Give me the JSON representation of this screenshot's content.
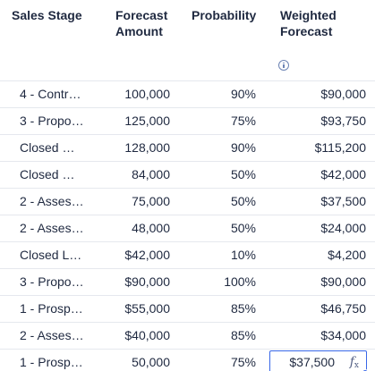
{
  "table": {
    "headers": {
      "stage": "Sales Stage",
      "amount_line1": "Forecast",
      "amount_line2": "Amount",
      "probability": "Probability",
      "weighted_line1": "Weighted",
      "weighted_line2": "Forecast"
    },
    "header_icon": "info-icon",
    "rows": [
      {
        "stage": "4 - Contr…",
        "amount": "100,000",
        "probability": "90%",
        "weighted": "$90,000"
      },
      {
        "stage": "3 - Propo…",
        "amount": "125,000",
        "probability": "75%",
        "weighted": "$93,750"
      },
      {
        "stage": "Closed …",
        "amount": "128,000",
        "probability": "90%",
        "weighted": "$115,200"
      },
      {
        "stage": "Closed …",
        "amount": "84,000",
        "probability": "50%",
        "weighted": "$42,000"
      },
      {
        "stage": "2 - Asses…",
        "amount": "75,000",
        "probability": "50%",
        "weighted": "$37,500"
      },
      {
        "stage": "2 - Asses…",
        "amount": "48,000",
        "probability": "50%",
        "weighted": "$24,000"
      },
      {
        "stage": "Closed L…",
        "amount": "$42,000",
        "probability": "10%",
        "weighted": "$4,200"
      },
      {
        "stage": "3 - Propo…",
        "amount": "$90,000",
        "probability": "100%",
        "weighted": "$90,000"
      },
      {
        "stage": "1 - Prosp…",
        "amount": "$55,000",
        "probability": "85%",
        "weighted": "$46,750"
      },
      {
        "stage": "2 - Asses…",
        "amount": "$40,000",
        "probability": "85%",
        "weighted": "$34,000"
      },
      {
        "stage": "1 - Prosp…",
        "amount": "50,000",
        "probability": "75%",
        "weighted": "$37,500"
      }
    ],
    "selected_cell": {
      "row": 10,
      "column": "weighted",
      "icon": "formula-fx-icon",
      "fx_main": "f",
      "fx_sub": "x"
    }
  },
  "colors": {
    "text": "#1f2940",
    "grid_line": "#e5e8ee",
    "selection": "#3867e8",
    "icon": "#6d84b4"
  }
}
